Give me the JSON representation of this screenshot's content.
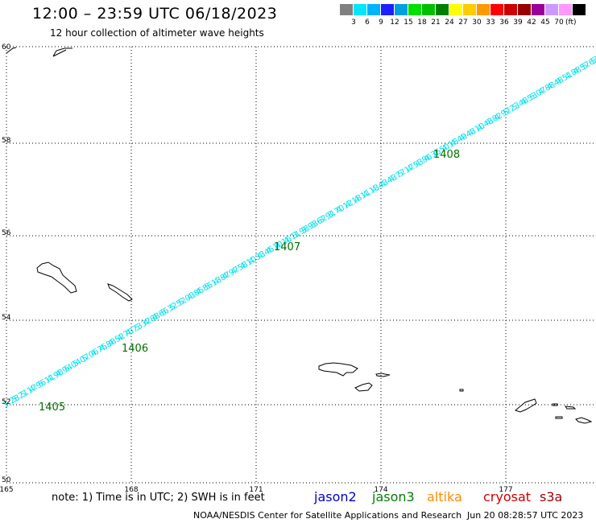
{
  "header": {
    "title": "12:00 – 23:59 UTC 06/18/2023",
    "subtitle": "12 hour collection of altimeter wave heights"
  },
  "legend": {
    "unit": "(ft)",
    "colors": [
      "#808080",
      "#00e6ff",
      "#00b3ff",
      "#1f1fff",
      "#00a0e0",
      "#00e000",
      "#00c000",
      "#008000",
      "#ffff00",
      "#ffcc00",
      "#ff9900",
      "#ff0000",
      "#cc0000",
      "#990000",
      "#990099",
      "#cc99ff",
      "#ff99ff",
      "#000000"
    ],
    "labels": [
      "3",
      "6",
      "9",
      "12",
      "15",
      "18",
      "21",
      "24",
      "27",
      "30",
      "33",
      "36",
      "39",
      "42",
      "45",
      "70"
    ]
  },
  "map": {
    "lon_ticks": [
      "165",
      "168",
      "171",
      "174",
      "177"
    ],
    "lat_ticks": [
      "60",
      "58",
      "56",
      "54",
      "52",
      "50"
    ],
    "pass_labels": [
      "1405",
      "1406",
      "1407",
      "1408"
    ],
    "track_color": "#00e0f0",
    "pass_color": "#007000",
    "track_values": [
      "3.28",
      "5.21",
      "5.17",
      "4.96",
      "5.11",
      "4.98",
      "4.94",
      "5.04",
      "5.07",
      "5.06",
      "4.75",
      "4.88",
      "4.52",
      "4.70",
      "4.73",
      "5.37",
      "4.88",
      "4.66",
      "5.32",
      "5.52",
      "5.03",
      "4.85",
      "4.86",
      "5.13",
      "4.87",
      "4.97",
      "4.58",
      "4.10",
      "4.33",
      "4.45",
      "4.10",
      "4.16",
      "4.11",
      "3.98",
      "3.93",
      "3.67",
      "3.91",
      "3.70",
      "4.12",
      "4.18",
      "4.11",
      "4.13",
      "4.43",
      "4.43",
      "4.77",
      "5.17",
      "4.53",
      "4.86",
      "4.36",
      "4.50",
      "4.18",
      "4.49",
      "4.43",
      "4.10",
      "4.43",
      "4.82",
      "4.97",
      "5.23",
      "5.48",
      "4.53",
      "5.07",
      "4.88",
      "4.48",
      "4.51",
      "4.88",
      "4.57",
      "5.63",
      "5.5"
    ]
  },
  "footer": {
    "note": "note:  1) Time is in UTC; 2) SWH is in feet",
    "missions": [
      {
        "name": "jason2",
        "color": "#0000cc"
      },
      {
        "name": "jason3",
        "color": "#008000"
      },
      {
        "name": "altika",
        "color": "#ff8c00"
      },
      {
        "name": "cryosat",
        "color": "#cc0000"
      },
      {
        "name": "s3a",
        "color": "#990000"
      }
    ],
    "credit": "NOAA/NESDIS Center for Satellite Applications and Research",
    "timestamp": "Jun 20 08:28:57 UTC 2023"
  }
}
